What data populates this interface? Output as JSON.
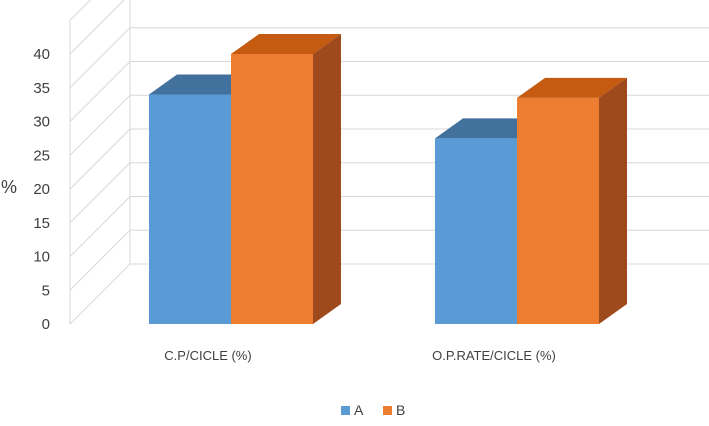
{
  "chart_data": {
    "type": "bar",
    "style": "3d-clustered-column",
    "categories": [
      "C.P/CICLE (%)",
      "O.P.RATE/CICLE (%)"
    ],
    "series": [
      {
        "name": "A",
        "values": [
          34,
          27.5
        ],
        "color": "#5b9bd5",
        "top_color": "#41719c",
        "side_color": "#41719c"
      },
      {
        "name": "B",
        "values": [
          40,
          33.5
        ],
        "color": "#ed7d31",
        "top_color": "#c55a11",
        "side_color": "#9e4a1c"
      }
    ],
    "ylabel": "%",
    "ylim": [
      0,
      40
    ],
    "yticks": [
      0,
      5,
      10,
      15,
      20,
      25,
      30,
      35,
      40
    ],
    "grid": true,
    "legend_position": "bottom"
  }
}
